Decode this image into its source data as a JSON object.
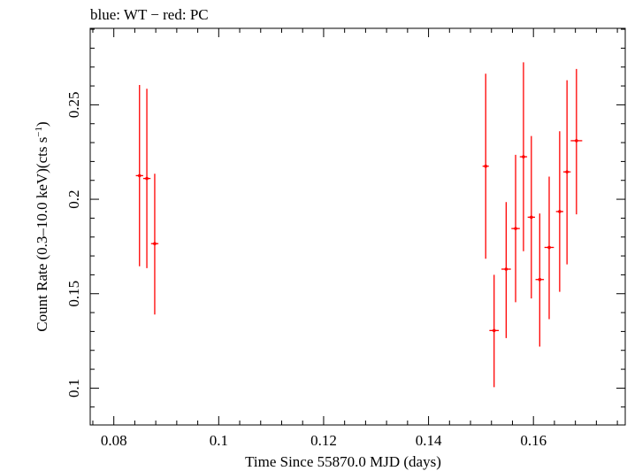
{
  "chart_data": {
    "type": "scatter",
    "title": "blue: WT − red: PC",
    "xlabel": "Time Since 55870.0 MJD (days)",
    "ylabel_main": "Count Rate (0.3–10.0 keV)(cts s",
    "ylabel_sup": "−1",
    "ylabel_close": ")",
    "xlim": [
      0.0755,
      0.1775
    ],
    "ylim": [
      0.0805,
      0.2905
    ],
    "xticks": [
      {
        "value": 0.08,
        "label": "0.08"
      },
      {
        "value": 0.1,
        "label": "0.1"
      },
      {
        "value": 0.12,
        "label": "0.12"
      },
      {
        "value": 0.14,
        "label": "0.14"
      },
      {
        "value": 0.16,
        "label": "0.16"
      }
    ],
    "yticks": [
      {
        "value": 0.1,
        "label": "0.1"
      },
      {
        "value": 0.15,
        "label": "0.15"
      },
      {
        "value": 0.2,
        "label": "0.2"
      },
      {
        "value": 0.25,
        "label": "0.25"
      }
    ],
    "grid": false,
    "series": [
      {
        "color": "#ff0000",
        "points": [
          {
            "x": 0.0849,
            "xerr": 0.0007,
            "y": 0.2125,
            "ylo": 0.1645,
            "yhi": 0.2605
          },
          {
            "x": 0.0863,
            "xerr": 0.0007,
            "y": 0.211,
            "ylo": 0.1635,
            "yhi": 0.2585
          },
          {
            "x": 0.0878,
            "xerr": 0.0007,
            "y": 0.1765,
            "ylo": 0.139,
            "yhi": 0.2135
          },
          {
            "x": 0.1509,
            "xerr": 0.0006,
            "y": 0.2175,
            "ylo": 0.1685,
            "yhi": 0.2665
          },
          {
            "x": 0.1525,
            "xerr": 0.0009,
            "y": 0.1305,
            "ylo": 0.1005,
            "yhi": 0.16
          },
          {
            "x": 0.1548,
            "xerr": 0.0009,
            "y": 0.163,
            "ylo": 0.1265,
            "yhi": 0.1985
          },
          {
            "x": 0.1566,
            "xerr": 0.0008,
            "y": 0.1845,
            "ylo": 0.1455,
            "yhi": 0.2235
          },
          {
            "x": 0.1581,
            "xerr": 0.0007,
            "y": 0.2225,
            "ylo": 0.1725,
            "yhi": 0.2725
          },
          {
            "x": 0.1596,
            "xerr": 0.0007,
            "y": 0.1905,
            "ylo": 0.1475,
            "yhi": 0.2335
          },
          {
            "x": 0.1612,
            "xerr": 0.0008,
            "y": 0.1575,
            "ylo": 0.122,
            "yhi": 0.1925
          },
          {
            "x": 0.163,
            "xerr": 0.0009,
            "y": 0.1745,
            "ylo": 0.1365,
            "yhi": 0.212
          },
          {
            "x": 0.165,
            "xerr": 0.0007,
            "y": 0.1935,
            "ylo": 0.151,
            "yhi": 0.236
          },
          {
            "x": 0.1664,
            "xerr": 0.0007,
            "y": 0.2145,
            "ylo": 0.1655,
            "yhi": 0.263
          },
          {
            "x": 0.1682,
            "xerr": 0.0011,
            "y": 0.231,
            "ylo": 0.192,
            "yhi": 0.269
          }
        ]
      }
    ]
  }
}
